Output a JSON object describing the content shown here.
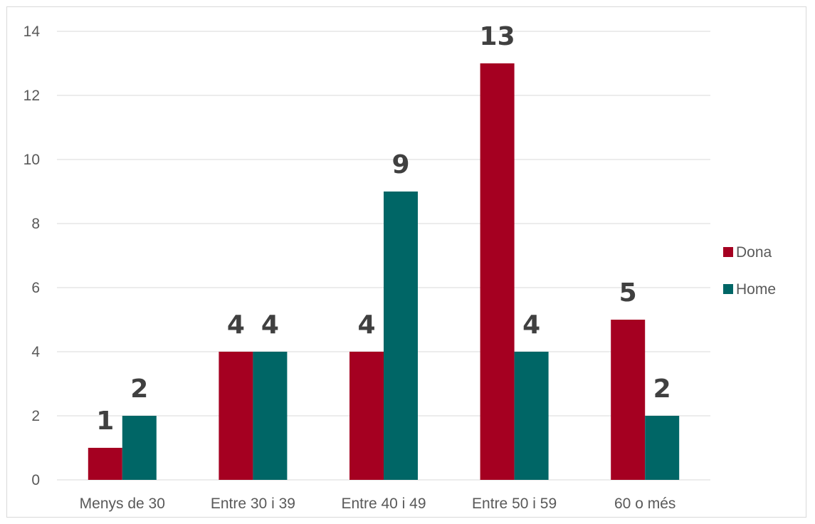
{
  "chart_data": {
    "type": "bar",
    "title": "",
    "xlabel": "",
    "ylabel": "",
    "categories": [
      "Menys de 30",
      "Entre 30 i 39",
      "Entre 40 i 49",
      "Entre 50 i 59",
      "60 o més"
    ],
    "series": [
      {
        "name": "Dona",
        "color": "#a50021",
        "values": [
          1,
          4,
          4,
          13,
          5
        ]
      },
      {
        "name": "Home",
        "color": "#006666",
        "values": [
          2,
          4,
          9,
          4,
          2
        ]
      }
    ],
    "ylim": [
      0,
      14
    ],
    "yticks": [
      0,
      2,
      4,
      6,
      8,
      10,
      12,
      14
    ],
    "grid": true,
    "legend_position": "right",
    "data_labels": true
  }
}
